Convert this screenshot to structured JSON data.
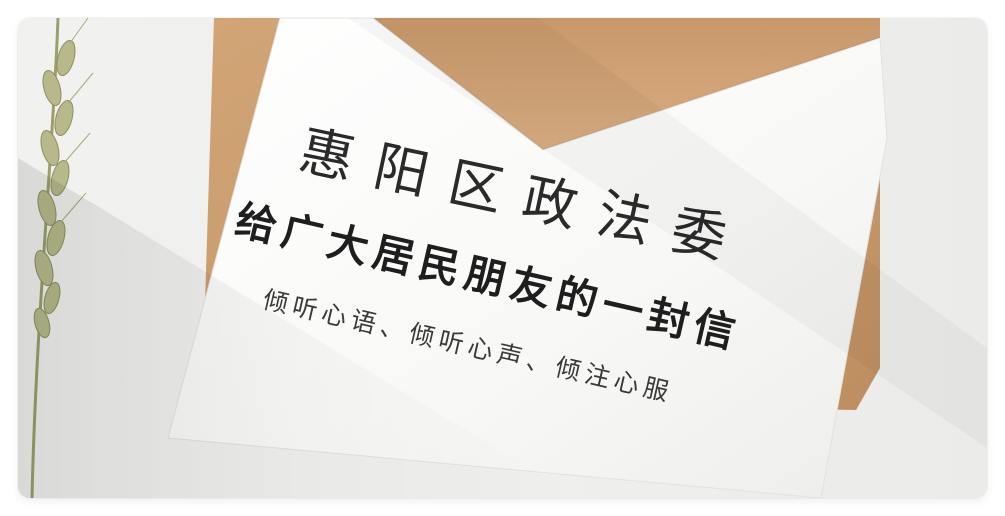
{
  "letter": {
    "title": "惠阳区政法委",
    "subtitle": "给广大居民朋友的一封信",
    "tagline": "倾听心语、倾听心声、倾注心服"
  },
  "colors": {
    "envelope": "#c99a6b",
    "envelope_dark": "#b4865a",
    "paper": "#fbfbf9",
    "ink": "#222222",
    "background": "#efefed"
  },
  "icons": [
    "wheat-stalk-icon"
  ]
}
